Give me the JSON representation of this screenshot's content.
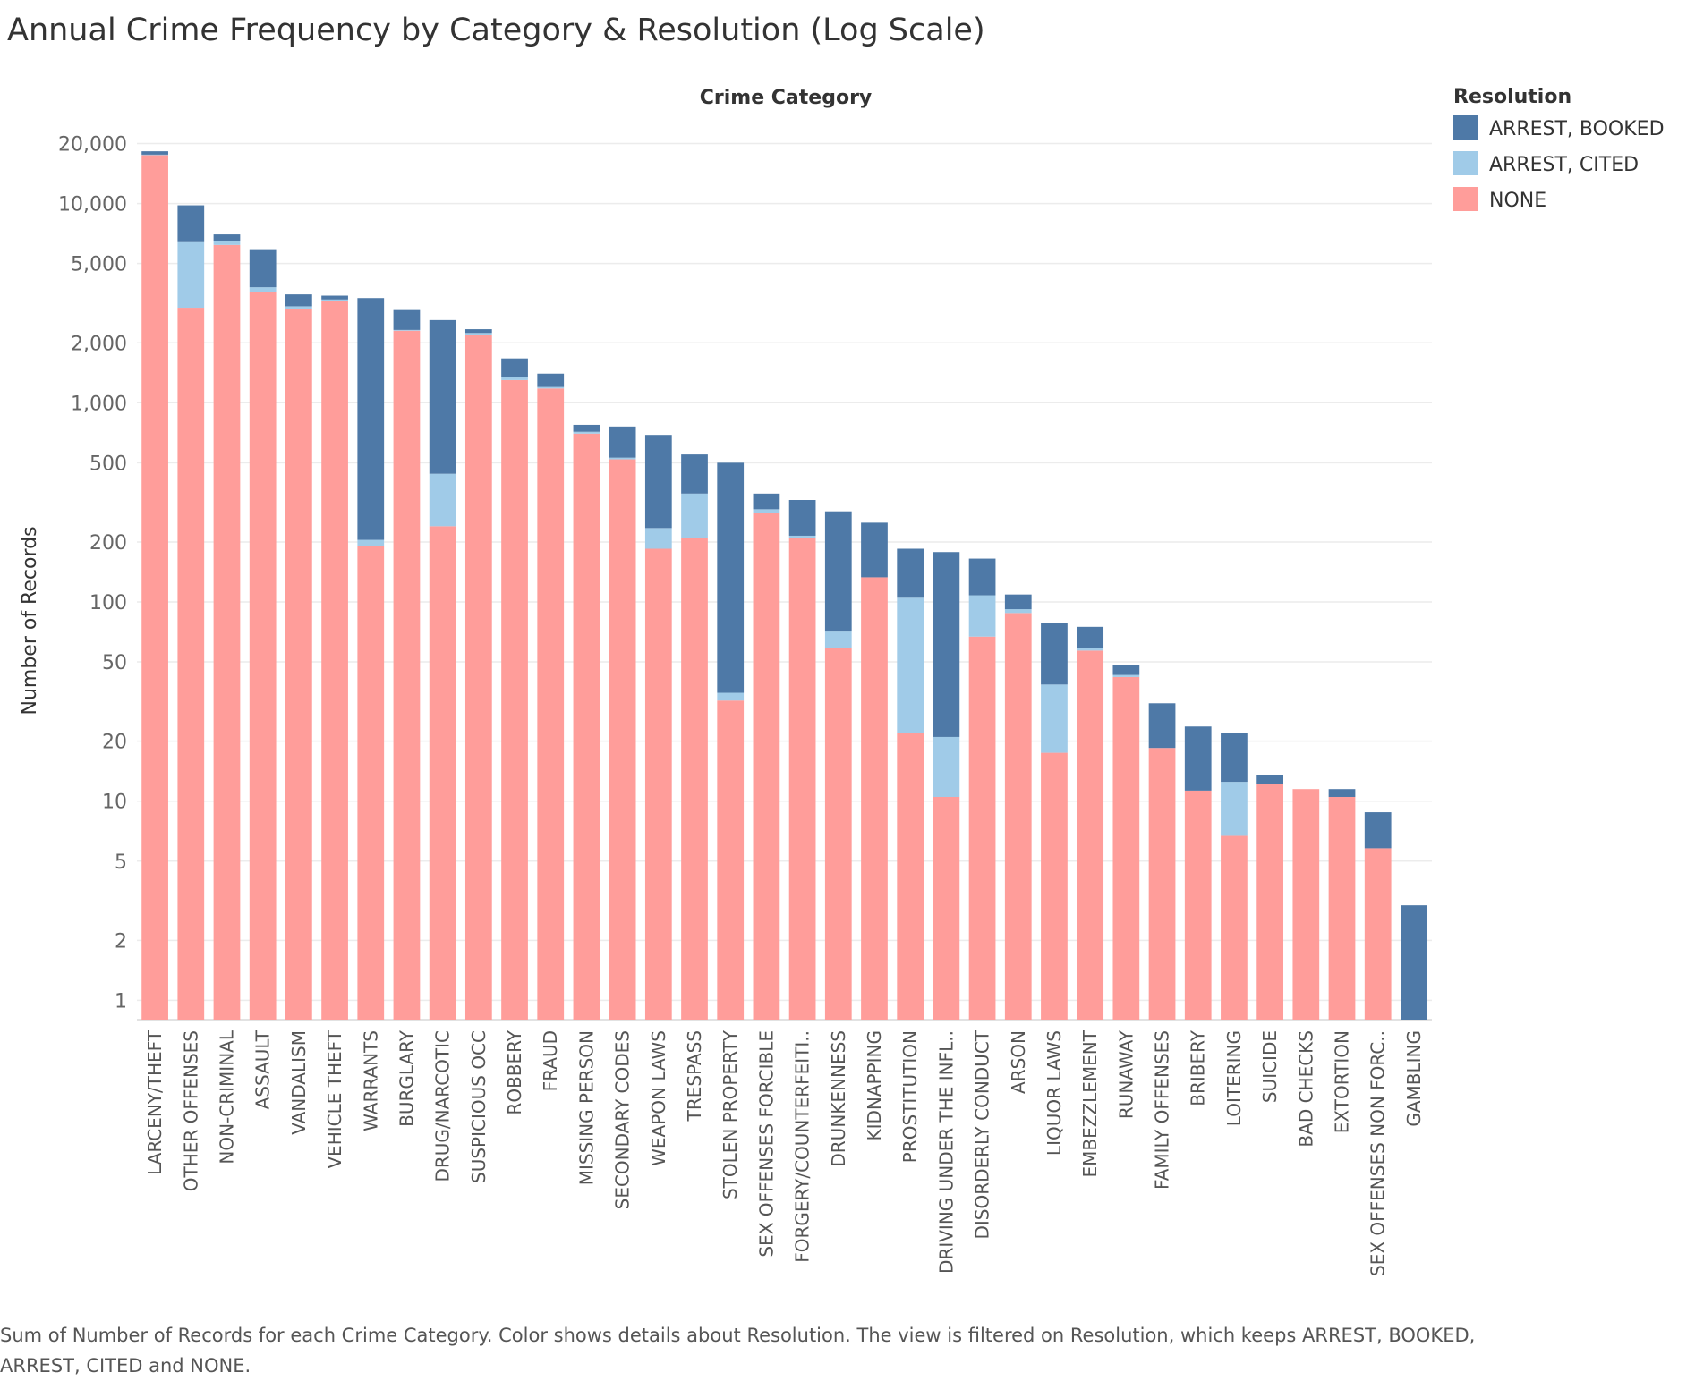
{
  "title": "Annual Crime Frequency by Category & Resolution (Log Scale)",
  "caption": "Sum of Number of Records for each Crime Category.  Color shows details about Resolution. The view is filtered on Resolution, which keeps ARREST, BOOKED, ARREST, CITED and NONE.",
  "chart_data": {
    "type": "bar",
    "stacked": true,
    "y_scale": "log",
    "title": "Annual Crime Frequency by Category & Resolution (Log Scale)",
    "column_header": "Crime Category",
    "ylabel": "Number of Records",
    "ylim": [
      0.8,
      28000
    ],
    "y_ticks": [
      1,
      2,
      5,
      10,
      20,
      50,
      100,
      200,
      500,
      1000,
      2000,
      5000,
      10000,
      20000
    ],
    "y_tick_labels": [
      "1",
      "2",
      "5",
      "10",
      "20",
      "50",
      "100",
      "200",
      "500",
      "1,000",
      "2,000",
      "5,000",
      "10,000",
      "20,000"
    ],
    "grid": true,
    "legend": {
      "title": "Resolution",
      "placement": "top-right"
    },
    "categories": [
      "LARCENY/THEFT",
      "OTHER OFFENSES",
      "NON-CRIMINAL",
      "ASSAULT",
      "VANDALISM",
      "VEHICLE THEFT",
      "WARRANTS",
      "BURGLARY",
      "DRUG/NARCOTIC",
      "SUSPICIOUS OCC",
      "ROBBERY",
      "FRAUD",
      "MISSING PERSON",
      "SECONDARY CODES",
      "WEAPON LAWS",
      "TRESPASS",
      "STOLEN PROPERTY",
      "SEX OFFENSES FORCIBLE",
      "FORGERY/COUNTERFEITI..",
      "DRUNKENNESS",
      "KIDNAPPING",
      "PROSTITUTION",
      "DRIVING UNDER THE INFL..",
      "DISORDERLY CONDUCT",
      "ARSON",
      "LIQUOR LAWS",
      "EMBEZZLEMENT",
      "RUNAWAY",
      "FAMILY OFFENSES",
      "BRIBERY",
      "LOITERING",
      "SUICIDE",
      "BAD CHECKS",
      "EXTORTION",
      "SEX OFFENSES NON FORC..",
      "GAMBLING"
    ],
    "series": [
      {
        "name": "NONE",
        "color": "#FF9D9A",
        "values": [
          17500,
          3000,
          6200,
          3600,
          2950,
          3250,
          190,
          2300,
          240,
          2200,
          1300,
          1180,
          700,
          520,
          185,
          210,
          32,
          280,
          210,
          59,
          133,
          22,
          10.5,
          67,
          88,
          17.5,
          57,
          42,
          18.5,
          11.3,
          6.7,
          12.2,
          11.5,
          10.5,
          5.8,
          0
        ]
      },
      {
        "name": "ARREST, CITED",
        "color": "#A0CBE8",
        "values": [
          100,
          3400,
          300,
          200,
          100,
          50,
          15,
          20,
          200,
          40,
          40,
          20,
          15,
          10,
          50,
          140,
          3,
          12,
          5,
          12,
          0,
          83,
          10.5,
          41,
          4,
          21,
          2,
          1,
          0,
          0,
          5.8,
          0,
          0,
          0,
          0,
          0
        ]
      },
      {
        "name": "ARREST, BOOKED",
        "color": "#4E79A7",
        "values": [
          700,
          3400,
          500,
          2100,
          450,
          150,
          3150,
          600,
          2160,
          100,
          330,
          200,
          60,
          230,
          455,
          200,
          465,
          58,
          110,
          214,
          117,
          80,
          157,
          57,
          17,
          40,
          16,
          5,
          12.5,
          12.4,
          9.5,
          1.3,
          0,
          1,
          3,
          3
        ]
      }
    ]
  }
}
